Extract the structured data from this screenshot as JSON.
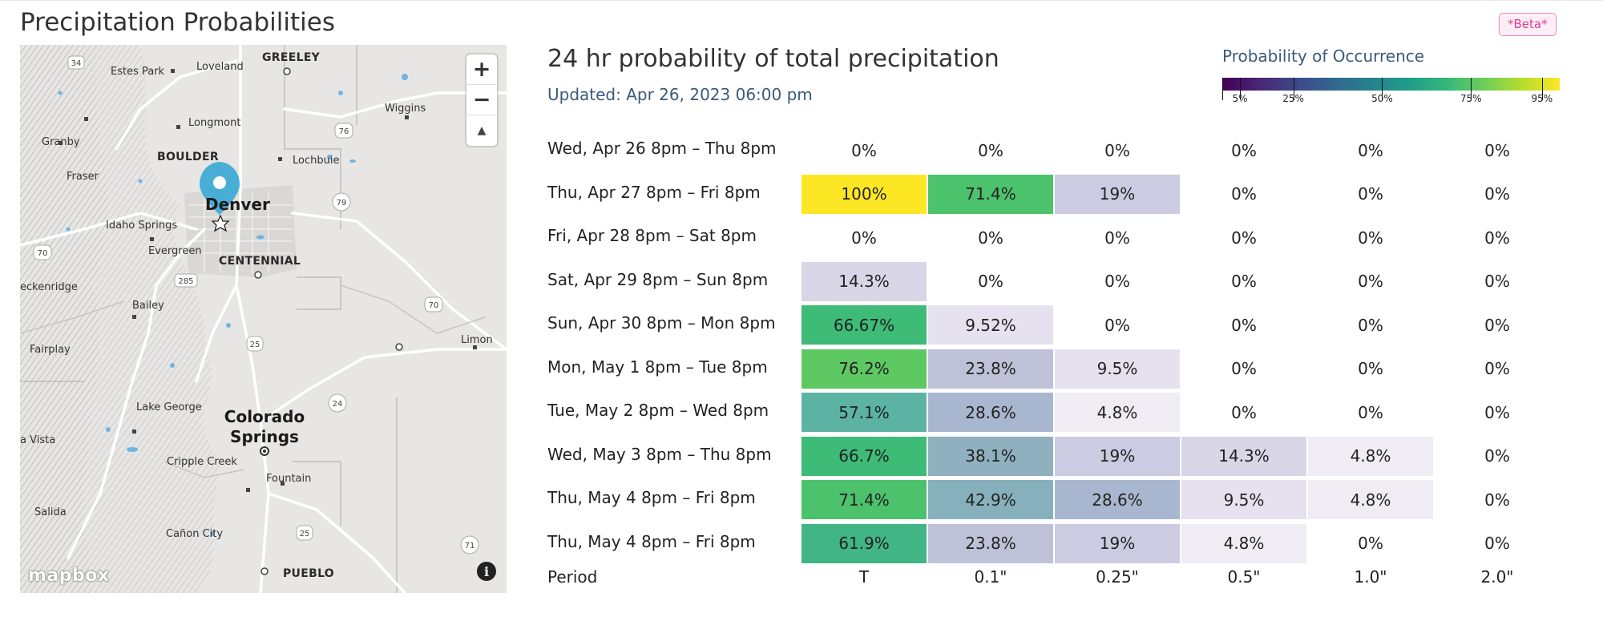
{
  "page": {
    "title": "Precipitation Probabilities",
    "badge": "*Beta*"
  },
  "map": {
    "zoom_in_label": "+",
    "zoom_out_label": "−",
    "compass_label": "▲",
    "attribution": "mapbox",
    "info_label": "i",
    "places": {
      "greeley": "GREELEY",
      "estes_park": "Estes Park",
      "loveland": "Loveland",
      "wiggins": "Wiggins",
      "longmont": "Longmont",
      "granby": "Granby",
      "boulder": "BOULDER",
      "lochbuie": "Lochbuie",
      "fraser": "Fraser",
      "denver": "Denver",
      "idaho_springs": "Idaho Springs",
      "evergreen": "Evergreen",
      "centennial": "CENTENNIAL",
      "breckenridge": "eckenridge",
      "bailey": "Bailey",
      "limon": "Limon",
      "fairplay": "Fairplay",
      "lake_george": "Lake George",
      "colorado_springs": "Colorado Springs",
      "buena_vista": "a Vista",
      "cripple_creek": "Cripple Creek",
      "fountain": "Fountain",
      "salida": "Salida",
      "canon_city": "Cañon City",
      "pueblo": "PUEBLO"
    },
    "shields": {
      "s34": "34",
      "s76": "76",
      "s79": "79",
      "s70a": "70",
      "s285": "285",
      "s70b": "70",
      "s25a": "25",
      "s24": "24",
      "s25b": "25",
      "s71": "71"
    }
  },
  "panel": {
    "title": "24 hr probability of total precipitation",
    "updated": "Updated: Apr 26, 2023 06:00 pm",
    "legend_title": "Probability of Occurrence",
    "legend_ticks": [
      "5%",
      "25%",
      "50%",
      "75%",
      "95%"
    ]
  },
  "table": {
    "columns": [
      "T",
      "0.1\"",
      "0.25\"",
      "0.5\"",
      "1.0\"",
      "2.0\""
    ],
    "footer_label": "Period",
    "rows": [
      {
        "period": "Wed, Apr 26 8pm – Thu 8pm",
        "values": [
          "0%",
          "0%",
          "0%",
          "0%",
          "0%",
          "0%"
        ],
        "probs": [
          0,
          0,
          0,
          0,
          0,
          0
        ]
      },
      {
        "period": "Thu, Apr 27 8pm – Fri 8pm",
        "values": [
          "100%",
          "71.4%",
          "19%",
          "0%",
          "0%",
          "0%"
        ],
        "probs": [
          100,
          71.4,
          19,
          0,
          0,
          0
        ]
      },
      {
        "period": "Fri, Apr 28 8pm – Sat 8pm",
        "values": [
          "0%",
          "0%",
          "0%",
          "0%",
          "0%",
          "0%"
        ],
        "probs": [
          0,
          0,
          0,
          0,
          0,
          0
        ]
      },
      {
        "period": "Sat, Apr 29 8pm – Sun 8pm",
        "values": [
          "14.3%",
          "0%",
          "0%",
          "0%",
          "0%",
          "0%"
        ],
        "probs": [
          14.3,
          0,
          0,
          0,
          0,
          0
        ]
      },
      {
        "period": "Sun, Apr 30 8pm – Mon 8pm",
        "values": [
          "66.67%",
          "9.52%",
          "0%",
          "0%",
          "0%",
          "0%"
        ],
        "probs": [
          66.67,
          9.52,
          0,
          0,
          0,
          0
        ]
      },
      {
        "period": "Mon, May 1 8pm – Tue 8pm",
        "values": [
          "76.2%",
          "23.8%",
          "9.5%",
          "0%",
          "0%",
          "0%"
        ],
        "probs": [
          76.2,
          23.8,
          9.5,
          0,
          0,
          0
        ]
      },
      {
        "period": "Tue, May 2 8pm – Wed 8pm",
        "values": [
          "57.1%",
          "28.6%",
          "4.8%",
          "0%",
          "0%",
          "0%"
        ],
        "probs": [
          57.1,
          28.6,
          4.8,
          0,
          0,
          0
        ]
      },
      {
        "period": "Wed, May 3 8pm – Thu 8pm",
        "values": [
          "66.7%",
          "38.1%",
          "19%",
          "14.3%",
          "4.8%",
          "0%"
        ],
        "probs": [
          66.7,
          38.1,
          19,
          14.3,
          4.8,
          0
        ]
      },
      {
        "period": "Thu, May 4 8pm – Fri 8pm",
        "values": [
          "71.4%",
          "42.9%",
          "28.6%",
          "9.5%",
          "4.8%",
          "0%"
        ],
        "probs": [
          71.4,
          42.9,
          28.6,
          9.5,
          4.8,
          0
        ]
      },
      {
        "period": "Thu, May 4 8pm – Fri 8pm",
        "values": [
          "61.9%",
          "23.8%",
          "19%",
          "4.8%",
          "0%",
          "0%"
        ],
        "probs": [
          61.9,
          23.8,
          19,
          4.8,
          0,
          0
        ]
      }
    ]
  },
  "colors": {
    "high": "#fde725",
    "green": "#35b779",
    "teal": "#26828e",
    "lavender": "#c9c8de"
  }
}
